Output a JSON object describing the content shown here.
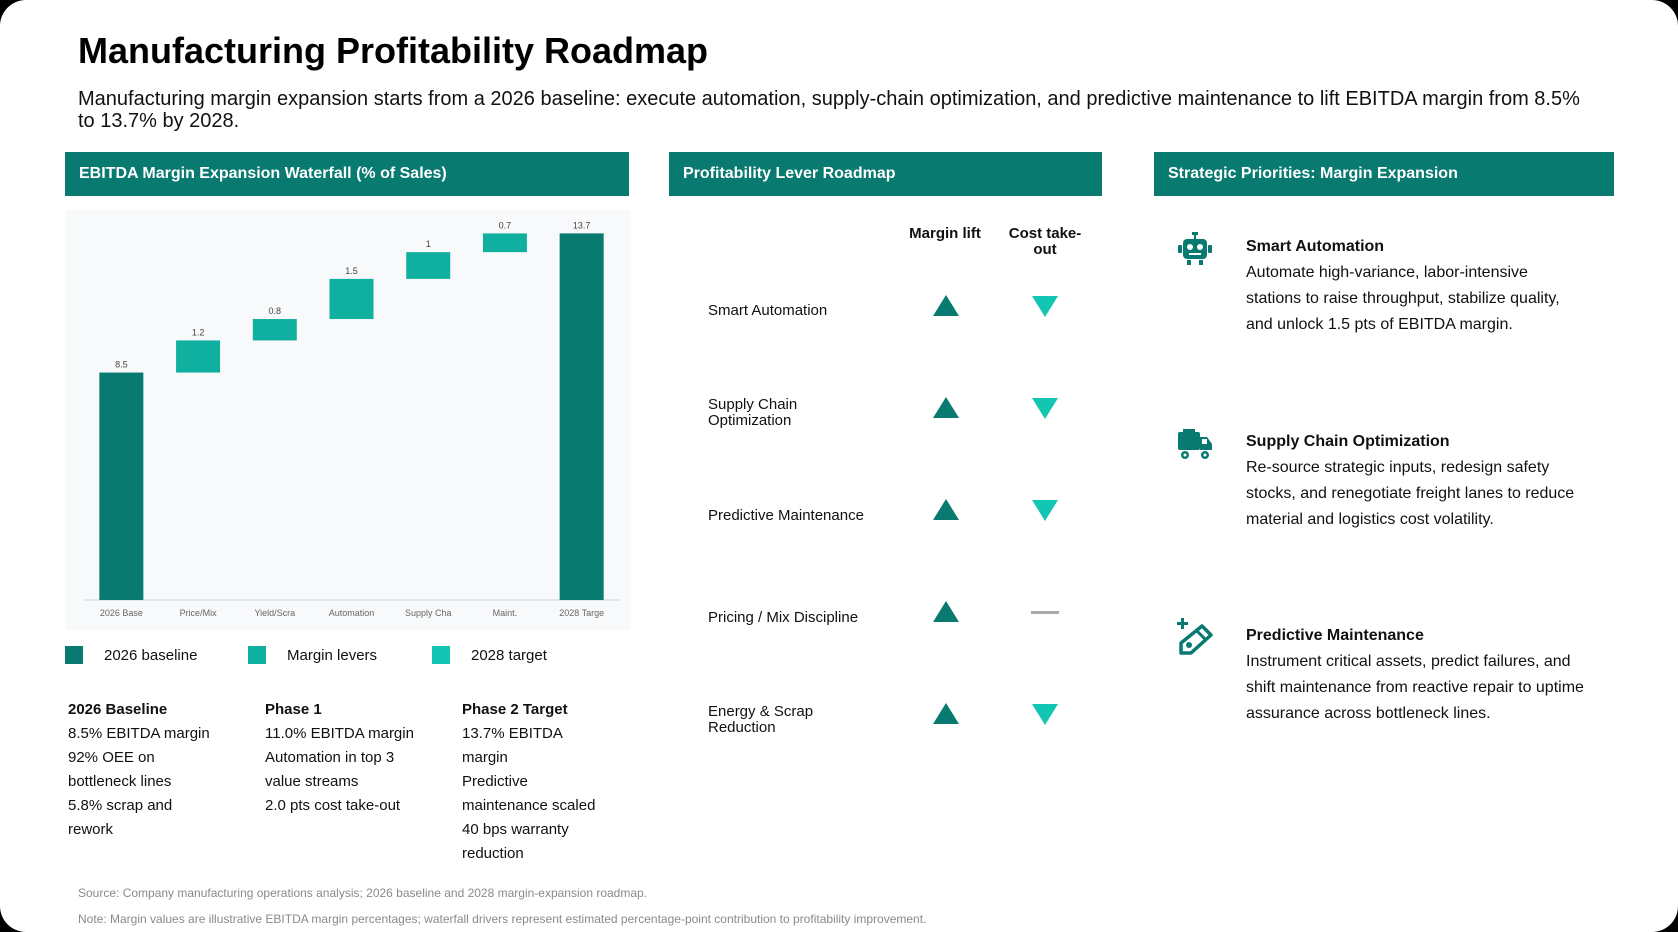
{
  "title": "Manufacturing Profitability Roadmap",
  "subtitle": "Manufacturing margin expansion starts from a 2026 baseline: execute automation, supply-chain optimization, and predictive maintenance to lift EBITDA margin from 8.5% to 13.7% by 2028.",
  "panels": {
    "waterfall_header": "EBITDA Margin Expansion Waterfall (% of Sales)",
    "roadmap_header": "Profitability Lever Roadmap",
    "priorities_header": "Strategic Priorities: Margin Expansion"
  },
  "colors": {
    "header": "#087a70",
    "baseline": "#087a70",
    "levers": "#10b0a0",
    "target": "#13c6b3",
    "up_arrow": "#087a70",
    "down_arrow": "#13c6b3"
  },
  "chart_data": {
    "type": "waterfall",
    "title": "EBITDA Margin Expansion Waterfall (% of Sales)",
    "categories": [
      "2026 Base",
      "Price/Mix",
      "Yield/Scra",
      "Automation",
      "Supply Cha",
      "Maint.",
      "2028 Targe"
    ],
    "values": [
      8.5,
      1.2,
      0.8,
      1.5,
      1,
      0.7,
      13.7
    ],
    "data_labels": [
      "8.5",
      "1.2",
      "0.8",
      "1.5",
      "1",
      "0.7",
      "13.7"
    ],
    "kinds": [
      "baseline",
      "lever",
      "lever",
      "lever",
      "lever",
      "lever",
      "target"
    ],
    "ylim": [
      0,
      14.5
    ],
    "grid": false
  },
  "legend": [
    {
      "label": "2026 baseline",
      "color": "#087a70"
    },
    {
      "label": "Margin levers",
      "color": "#10b0a0"
    },
    {
      "label": "2028 target",
      "color": "#13c6b3"
    }
  ],
  "phases": [
    {
      "title": "2026 Baseline",
      "lines": [
        "8.5% EBITDA margin",
        "92% OEE on bottleneck lines",
        "5.8% scrap and rework"
      ]
    },
    {
      "title": "Phase 1",
      "lines": [
        "11.0% EBITDA margin",
        "Automation in top 3 value streams",
        "2.0 pts cost take-out"
      ]
    },
    {
      "title": "Phase 2 Target",
      "lines": [
        "13.7% EBITDA margin",
        "Predictive maintenance scaled",
        "40 bps warranty reduction"
      ]
    }
  ],
  "roadmap": {
    "col_margin": "Margin lift",
    "col_cost": "Cost take-out",
    "levers": [
      {
        "label": "Smart Automation",
        "margin": "up",
        "cost": "down"
      },
      {
        "label": "Supply Chain Optimization",
        "margin": "up",
        "cost": "down"
      },
      {
        "label": "Predictive Maintenance",
        "margin": "up",
        "cost": "down"
      },
      {
        "label": "Pricing / Mix Discipline",
        "margin": "up",
        "cost": "none"
      },
      {
        "label": "Energy & Scrap Reduction",
        "margin": "up",
        "cost": "down"
      }
    ]
  },
  "priorities": [
    {
      "icon": "robot-icon",
      "title": "Smart Automation",
      "body": "Automate high-variance, labor-intensive stations to raise throughput, stabilize quality, and unlock 1.5 pts of EBITDA margin."
    },
    {
      "icon": "truck-icon",
      "title": "Supply Chain Optimization",
      "body": "Re-source strategic inputs, redesign safety stocks, and renegotiate freight lanes to reduce material and logistics cost volatility."
    },
    {
      "icon": "wrench-icon",
      "title": "Predictive Maintenance",
      "body": "Instrument critical assets, predict failures, and shift maintenance from reactive repair to uptime assurance across bottleneck lines."
    }
  ],
  "source": "Source: Company manufacturing operations analysis; 2026 baseline and 2028 margin-expansion roadmap.",
  "note": "Note: Margin values are illustrative EBITDA margin percentages; waterfall drivers represent estimated percentage-point contribution to profitability improvement."
}
